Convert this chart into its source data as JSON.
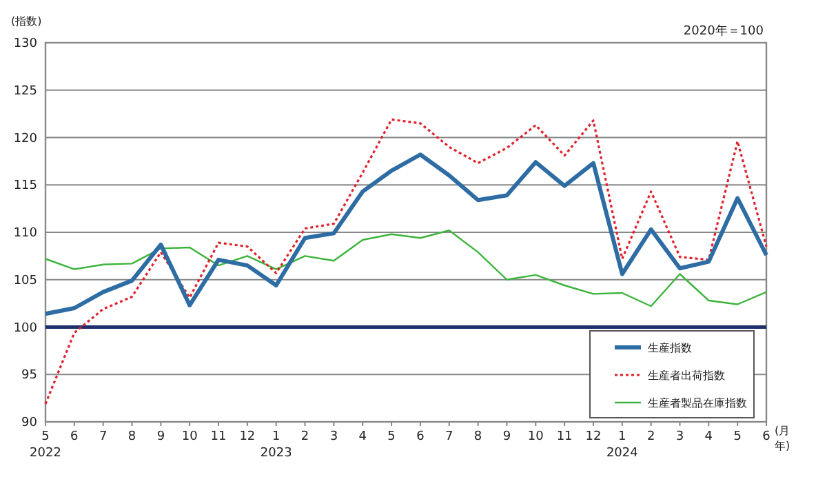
{
  "chart_data": {
    "type": "line",
    "categories": [
      "5\n2022",
      "6",
      "7",
      "8",
      "9",
      "10",
      "11",
      "12",
      "1\n2023",
      "2",
      "3",
      "4",
      "5",
      "6",
      "7",
      "8",
      "9",
      "10",
      "11",
      "12",
      "1\n2024",
      "2",
      "3",
      "4",
      "5",
      "6"
    ],
    "series": [
      {
        "name": "生産指数",
        "color": "#2e6ca4",
        "line_style": "solid",
        "values": [
          101.4,
          102.0,
          103.7,
          104.9,
          108.7,
          102.3,
          107.1,
          106.5,
          104.4,
          109.4,
          109.9,
          114.3,
          116.5,
          118.2,
          116.0,
          113.4,
          113.9,
          117.4,
          114.9,
          117.3,
          105.6,
          110.3,
          106.2,
          106.9,
          113.6,
          107.6
        ]
      },
      {
        "name": "生産者出荷指数",
        "color": "#e0202a",
        "line_style": "dotted",
        "values": [
          91.9,
          99.4,
          101.9,
          103.2,
          107.9,
          103.1,
          108.9,
          108.5,
          105.7,
          110.4,
          110.9,
          116.3,
          121.9,
          121.5,
          119.0,
          117.3,
          118.9,
          121.3,
          118.1,
          121.8,
          107.2,
          114.3,
          107.4,
          107.1,
          119.6,
          108.5
        ]
      },
      {
        "name": "生産者製品在庫指数",
        "color": "#3cb43c",
        "line_style": "solid",
        "values": [
          107.2,
          106.1,
          106.6,
          106.7,
          108.3,
          108.4,
          106.5,
          107.5,
          106.1,
          107.5,
          107.0,
          109.2,
          109.8,
          109.4,
          110.2,
          107.9,
          105.0,
          105.5,
          104.4,
          103.5,
          103.6,
          102.2,
          105.6,
          102.8,
          102.4,
          103.7
        ]
      }
    ],
    "ylim": [
      90,
      130
    ],
    "yticks": [
      90,
      95,
      100,
      105,
      110,
      115,
      120,
      125,
      130
    ],
    "ylabel": "(指数)",
    "xlabel": "(月年)",
    "annotations": [
      "2020年＝100"
    ],
    "ref_lines": [
      {
        "axis": "y",
        "value": 100,
        "color": "#1f2f6e"
      }
    ],
    "grid": "y",
    "legend": "bottom right",
    "marker": "none"
  }
}
